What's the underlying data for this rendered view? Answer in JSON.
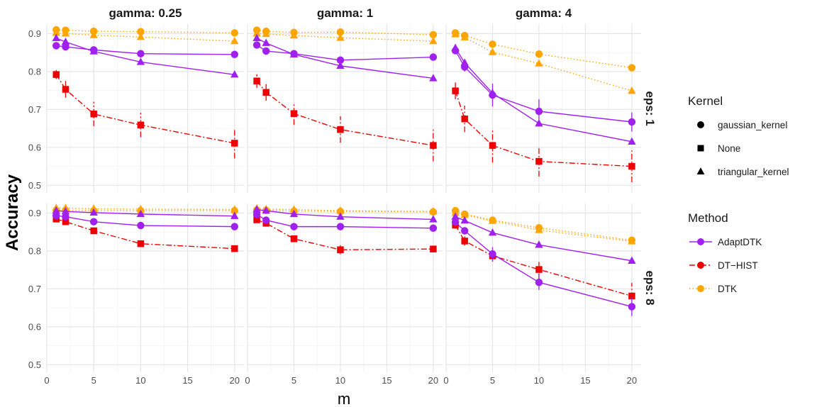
{
  "chart_data": {
    "type": "line",
    "xlabel": "m",
    "ylabel": "Accuracy",
    "x": [
      1,
      2,
      5,
      10,
      20
    ],
    "xticks": [
      0,
      5,
      10,
      15,
      20
    ],
    "xlim": [
      0,
      21
    ],
    "ylim": [
      0.48,
      0.925
    ],
    "yticks": [
      0.5,
      0.6,
      0.7,
      0.8,
      0.9
    ],
    "ytick_labels": [
      "0.5",
      "0.6",
      "0.7",
      "0.8",
      "0.9"
    ],
    "grid": true,
    "legend_position": "right",
    "colors": {
      "AdaptDTK": "#a020f0",
      "DT-HIST": "#ee0000",
      "DTK": "#ffa500"
    },
    "legend": {
      "kernel_title": "Kernel",
      "kernels": [
        {
          "label": "gaussian_kernel",
          "shape": "circle"
        },
        {
          "label": "None",
          "shape": "square"
        },
        {
          "label": "triangular_kernel",
          "shape": "triangle"
        }
      ],
      "method_title": "Method",
      "methods": [
        {
          "label": "AdaptDTK",
          "color": "#a020f0",
          "dash": "solid"
        },
        {
          "label": "DT−HIST",
          "color": "#ee0000",
          "dash": "dashdot"
        },
        {
          "label": "DTK",
          "color": "#ffa500",
          "dash": "dotted"
        }
      ]
    },
    "col_labels": [
      "gamma: 0.25",
      "gamma: 1",
      "gamma: 4"
    ],
    "row_labels": [
      "eps: 1",
      "eps: 8"
    ],
    "panels": [
      {
        "row": 0,
        "col": 0,
        "series": [
          {
            "method": "AdaptDTK",
            "kernel": "gaussian_kernel",
            "values": [
              0.868,
              0.865,
              0.857,
              0.847,
              0.845
            ],
            "err": [
              0.006,
              0.006,
              0.006,
              0.006,
              0.005
            ]
          },
          {
            "method": "AdaptDTK",
            "kernel": "triangular_kernel",
            "values": [
              0.888,
              0.878,
              0.853,
              0.825,
              0.792
            ],
            "err": [
              0.005,
              0.005,
              0.005,
              0.005,
              0.005
            ]
          },
          {
            "method": "DT-HIST",
            "kernel": "None",
            "values": [
              0.792,
              0.753,
              0.688,
              0.659,
              0.611
            ],
            "err": [
              0.012,
              0.022,
              0.032,
              0.032,
              0.04
            ]
          },
          {
            "method": "DTK",
            "kernel": "gaussian_kernel",
            "values": [
              0.91,
              0.909,
              0.906,
              0.905,
              0.902
            ],
            "err": [
              0.003,
              0.003,
              0.003,
              0.003,
              0.003
            ]
          },
          {
            "method": "DTK",
            "kernel": "triangular_kernel",
            "values": [
              0.902,
              0.9,
              0.896,
              0.891,
              0.88
            ],
            "err": [
              0.003,
              0.003,
              0.003,
              0.003,
              0.003
            ]
          }
        ]
      },
      {
        "row": 0,
        "col": 1,
        "series": [
          {
            "method": "AdaptDTK",
            "kernel": "gaussian_kernel",
            "values": [
              0.87,
              0.854,
              0.847,
              0.83,
              0.838
            ],
            "err": [
              0.006,
              0.006,
              0.006,
              0.01,
              0.006
            ]
          },
          {
            "method": "AdaptDTK",
            "kernel": "triangular_kernel",
            "values": [
              0.888,
              0.875,
              0.845,
              0.815,
              0.782
            ],
            "err": [
              0.005,
              0.005,
              0.005,
              0.005,
              0.005
            ]
          },
          {
            "method": "DT-HIST",
            "kernel": "None",
            "values": [
              0.775,
              0.745,
              0.689,
              0.647,
              0.605
            ],
            "err": [
              0.018,
              0.022,
              0.03,
              0.035,
              0.042
            ]
          },
          {
            "method": "DTK",
            "kernel": "gaussian_kernel",
            "values": [
              0.909,
              0.906,
              0.903,
              0.904,
              0.897
            ],
            "err": [
              0.003,
              0.003,
              0.003,
              0.003,
              0.003
            ]
          },
          {
            "method": "DTK",
            "kernel": "triangular_kernel",
            "values": [
              0.9,
              0.899,
              0.895,
              0.889,
              0.88
            ],
            "err": [
              0.003,
              0.003,
              0.003,
              0.003,
              0.003
            ]
          }
        ]
      },
      {
        "row": 0,
        "col": 2,
        "series": [
          {
            "method": "AdaptDTK",
            "kernel": "gaussian_kernel",
            "values": [
              0.855,
              0.812,
              0.738,
              0.695,
              0.667
            ],
            "err": [
              0.008,
              0.012,
              0.03,
              0.032,
              0.025
            ]
          },
          {
            "method": "AdaptDTK",
            "kernel": "triangular_kernel",
            "values": [
              0.862,
              0.823,
              0.743,
              0.663,
              0.615
            ],
            "err": [
              0.006,
              0.008,
              0.012,
              0.008,
              0.006
            ]
          },
          {
            "method": "DT-HIST",
            "kernel": "None",
            "values": [
              0.749,
              0.675,
              0.605,
              0.563,
              0.55
            ],
            "err": [
              0.022,
              0.035,
              0.045,
              0.04,
              0.042
            ]
          },
          {
            "method": "DTK",
            "kernel": "gaussian_kernel",
            "values": [
              0.902,
              0.895,
              0.872,
              0.846,
              0.81
            ],
            "err": [
              0.003,
              0.003,
              0.003,
              0.003,
              0.004
            ]
          },
          {
            "method": "DTK",
            "kernel": "triangular_kernel",
            "values": [
              0.898,
              0.89,
              0.851,
              0.821,
              0.749
            ],
            "err": [
              0.003,
              0.003,
              0.003,
              0.004,
              0.004
            ]
          }
        ]
      },
      {
        "row": 1,
        "col": 0,
        "series": [
          {
            "method": "AdaptDTK",
            "kernel": "gaussian_kernel",
            "values": [
              0.893,
              0.89,
              0.877,
              0.867,
              0.864
            ],
            "err": [
              0.004,
              0.004,
              0.004,
              0.004,
              0.004
            ]
          },
          {
            "method": "AdaptDTK",
            "kernel": "triangular_kernel",
            "values": [
              0.906,
              0.904,
              0.901,
              0.897,
              0.892
            ],
            "err": [
              0.003,
              0.003,
              0.003,
              0.003,
              0.003
            ]
          },
          {
            "method": "DT-HIST",
            "kernel": "None",
            "values": [
              0.884,
              0.877,
              0.853,
              0.819,
              0.806
            ],
            "err": [
              0.006,
              0.006,
              0.007,
              0.008,
              0.005
            ]
          },
          {
            "method": "DTK",
            "kernel": "gaussian_kernel",
            "values": [
              0.907,
              0.907,
              0.906,
              0.906,
              0.906
            ],
            "err": [
              0.002,
              0.002,
              0.002,
              0.002,
              0.002
            ]
          },
          {
            "method": "DTK",
            "kernel": "triangular_kernel",
            "values": [
              0.913,
              0.913,
              0.911,
              0.91,
              0.909
            ],
            "err": [
              0.002,
              0.002,
              0.002,
              0.002,
              0.002
            ]
          }
        ]
      },
      {
        "row": 1,
        "col": 1,
        "series": [
          {
            "method": "AdaptDTK",
            "kernel": "gaussian_kernel",
            "values": [
              0.896,
              0.881,
              0.864,
              0.864,
              0.86
            ],
            "err": [
              0.004,
              0.004,
              0.004,
              0.004,
              0.004
            ]
          },
          {
            "method": "AdaptDTK",
            "kernel": "triangular_kernel",
            "values": [
              0.909,
              0.906,
              0.897,
              0.89,
              0.883
            ],
            "err": [
              0.003,
              0.003,
              0.003,
              0.003,
              0.003
            ]
          },
          {
            "method": "DT-HIST",
            "kernel": "None",
            "values": [
              0.882,
              0.873,
              0.832,
              0.803,
              0.805
            ],
            "err": [
              0.006,
              0.006,
              0.007,
              0.012,
              0.006
            ]
          },
          {
            "method": "DTK",
            "kernel": "gaussian_kernel",
            "values": [
              0.908,
              0.907,
              0.905,
              0.904,
              0.903
            ],
            "err": [
              0.002,
              0.002,
              0.002,
              0.002,
              0.002
            ]
          },
          {
            "method": "DTK",
            "kernel": "triangular_kernel",
            "values": [
              0.912,
              0.91,
              0.909,
              0.906,
              0.904
            ],
            "err": [
              0.002,
              0.002,
              0.002,
              0.002,
              0.002
            ]
          }
        ]
      },
      {
        "row": 1,
        "col": 2,
        "series": [
          {
            "method": "AdaptDTK",
            "kernel": "gaussian_kernel",
            "values": [
              0.876,
              0.853,
              0.792,
              0.717,
              0.653
            ],
            "err": [
              0.006,
              0.008,
              0.018,
              0.02,
              0.025
            ]
          },
          {
            "method": "AdaptDTK",
            "kernel": "triangular_kernel",
            "values": [
              0.89,
              0.88,
              0.848,
              0.816,
              0.774
            ],
            "err": [
              0.004,
              0.004,
              0.006,
              0.006,
              0.008
            ]
          },
          {
            "method": "DT-HIST",
            "kernel": "None",
            "values": [
              0.868,
              0.826,
              0.787,
              0.751,
              0.681
            ],
            "err": [
              0.01,
              0.012,
              0.015,
              0.025,
              0.035
            ]
          },
          {
            "method": "DTK",
            "kernel": "gaussian_kernel",
            "values": [
              0.906,
              0.897,
              0.881,
              0.861,
              0.828
            ],
            "err": [
              0.003,
              0.003,
              0.004,
              0.004,
              0.004
            ]
          },
          {
            "method": "DTK",
            "kernel": "triangular_kernel",
            "values": [
              0.9,
              0.895,
              0.879,
              0.855,
              0.825
            ],
            "err": [
              0.003,
              0.003,
              0.004,
              0.004,
              0.004
            ]
          }
        ]
      }
    ]
  }
}
